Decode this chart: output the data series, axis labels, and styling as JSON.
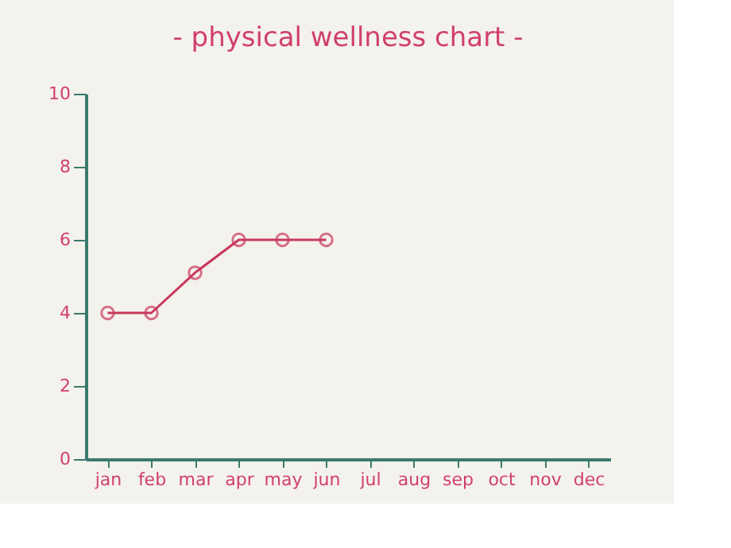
{
  "chart_data": {
    "type": "line",
    "title": "- physical wellness chart -",
    "categories": [
      "jan",
      "feb",
      "mar",
      "apr",
      "may",
      "jun",
      "jul",
      "aug",
      "sep",
      "oct",
      "nov",
      "dec"
    ],
    "series": [
      {
        "color": "#c8385a",
        "values": [
          4,
          4,
          5.1,
          6,
          6,
          6,
          null,
          null,
          null,
          null,
          null,
          null
        ]
      }
    ],
    "ylim": [
      0,
      10
    ],
    "yticks": [
      0,
      2,
      4,
      6,
      8,
      10
    ],
    "grid": false,
    "marker": "circle",
    "line_style": "solid"
  }
}
